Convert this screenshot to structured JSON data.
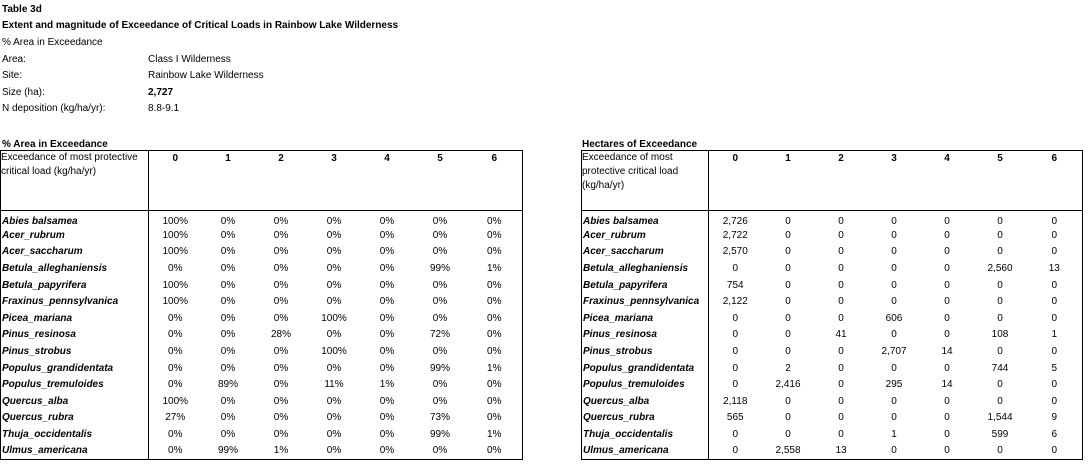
{
  "header": {
    "table_no": "Table 3d",
    "title": "Extent and magnitude of Exceedance of Critical Loads in Rainbow Lake Wilderness",
    "subtitle": "% Area in Exceedance"
  },
  "meta": {
    "area_label": "Area:",
    "area_value": "Class I Wilderness",
    "site_label": "Site:",
    "site_value": "Rainbow Lake Wilderness",
    "size_label": "Size (ha):",
    "size_value": "2,727",
    "ndep_label": "N deposition (kg/ha/yr):",
    "ndep_value": "8.8-9.1"
  },
  "tables": {
    "columns": [
      "0",
      "1",
      "2",
      "3",
      "4",
      "5",
      "6"
    ],
    "desc": "Exceedance of most protective critical load (kg/ha/yr)",
    "species": [
      "Abies balsamea",
      "Acer_rubrum",
      "Acer_saccharum",
      "Betula_alleghaniensis",
      "Betula_papyrifera",
      "Fraxinus_pennsylvanica",
      "Picea_mariana",
      "Pinus_resinosa",
      "Pinus_strobus",
      "Populus_grandidentata",
      "Populus_tremuloides",
      "Quercus_alba",
      "Quercus_rubra",
      "Thuja_occidentalis",
      "Ulmus_americana"
    ],
    "pct": {
      "caption": "% Area  in Exceedance",
      "rows": [
        [
          "100%",
          "0%",
          "0%",
          "0%",
          "0%",
          "0%",
          "0%"
        ],
        [
          "100%",
          "0%",
          "0%",
          "0%",
          "0%",
          "0%",
          "0%"
        ],
        [
          "100%",
          "0%",
          "0%",
          "0%",
          "0%",
          "0%",
          "0%"
        ],
        [
          "0%",
          "0%",
          "0%",
          "0%",
          "0%",
          "99%",
          "1%"
        ],
        [
          "100%",
          "0%",
          "0%",
          "0%",
          "0%",
          "0%",
          "0%"
        ],
        [
          "100%",
          "0%",
          "0%",
          "0%",
          "0%",
          "0%",
          "0%"
        ],
        [
          "0%",
          "0%",
          "0%",
          "100%",
          "0%",
          "0%",
          "0%"
        ],
        [
          "0%",
          "0%",
          "28%",
          "0%",
          "0%",
          "72%",
          "0%"
        ],
        [
          "0%",
          "0%",
          "0%",
          "100%",
          "0%",
          "0%",
          "0%"
        ],
        [
          "0%",
          "0%",
          "0%",
          "0%",
          "0%",
          "99%",
          "1%"
        ],
        [
          "0%",
          "89%",
          "0%",
          "11%",
          "1%",
          "0%",
          "0%"
        ],
        [
          "100%",
          "0%",
          "0%",
          "0%",
          "0%",
          "0%",
          "0%"
        ],
        [
          "27%",
          "0%",
          "0%",
          "0%",
          "0%",
          "73%",
          "0%"
        ],
        [
          "0%",
          "0%",
          "0%",
          "0%",
          "0%",
          "99%",
          "1%"
        ],
        [
          "0%",
          "99%",
          "1%",
          "0%",
          "0%",
          "0%",
          "0%"
        ]
      ]
    },
    "ha": {
      "caption": "Hectares of Exceedance",
      "rows": [
        [
          "2,726",
          "0",
          "0",
          "0",
          "0",
          "0",
          "0"
        ],
        [
          "2,722",
          "0",
          "0",
          "0",
          "0",
          "0",
          "0"
        ],
        [
          "2,570",
          "0",
          "0",
          "0",
          "0",
          "0",
          "0"
        ],
        [
          "0",
          "0",
          "0",
          "0",
          "0",
          "2,560",
          "13"
        ],
        [
          "754",
          "0",
          "0",
          "0",
          "0",
          "0",
          "0"
        ],
        [
          "2,122",
          "0",
          "0",
          "0",
          "0",
          "0",
          "0"
        ],
        [
          "0",
          "0",
          "0",
          "606",
          "0",
          "0",
          "0"
        ],
        [
          "0",
          "0",
          "41",
          "0",
          "0",
          "108",
          "1"
        ],
        [
          "0",
          "0",
          "0",
          "2,707",
          "14",
          "0",
          "0"
        ],
        [
          "0",
          "2",
          "0",
          "0",
          "0",
          "744",
          "5"
        ],
        [
          "0",
          "2,416",
          "0",
          "295",
          "14",
          "0",
          "0"
        ],
        [
          "2,118",
          "0",
          "0",
          "0",
          "0",
          "0",
          "0"
        ],
        [
          "565",
          "0",
          "0",
          "0",
          "0",
          "1,544",
          "9"
        ],
        [
          "0",
          "0",
          "0",
          "1",
          "0",
          "599",
          "6"
        ],
        [
          "0",
          "2,558",
          "13",
          "0",
          "0",
          "0",
          "0"
        ]
      ]
    }
  }
}
